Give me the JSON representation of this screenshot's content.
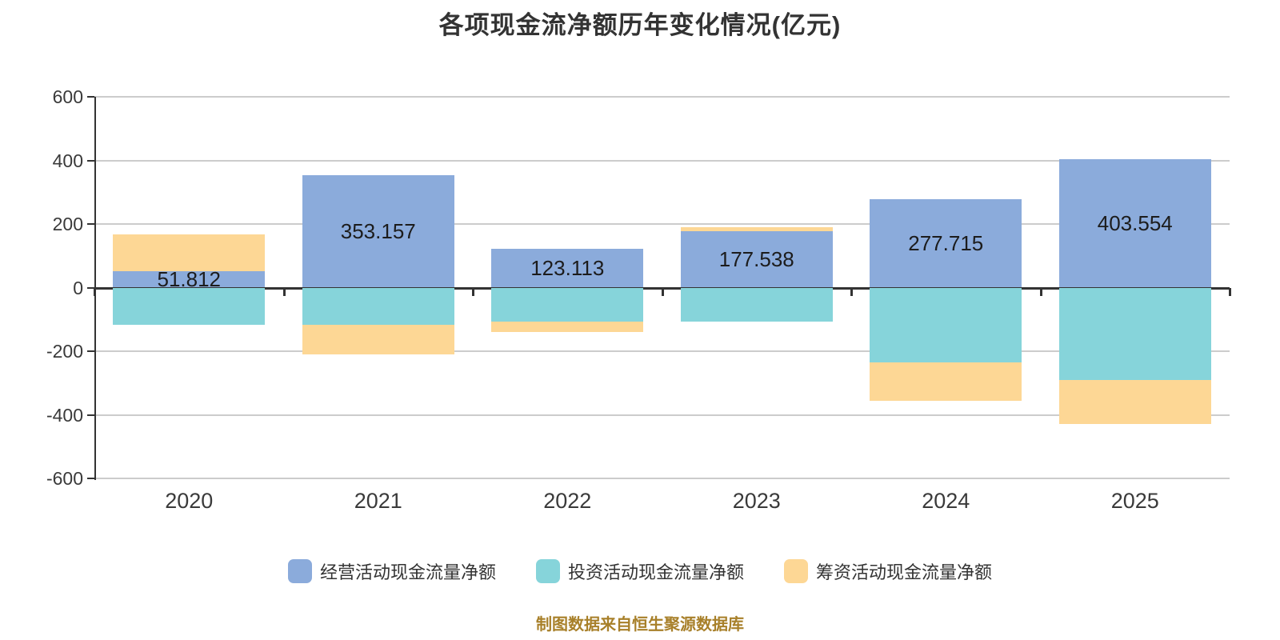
{
  "title": "各项现金流净额历年变化情况(亿元)",
  "footer": "制图数据来自恒生聚源数据库",
  "colors": {
    "background": "#ffffff",
    "title_text": "#333333",
    "axis_line": "#333333",
    "grid_line": "#cccccc",
    "axis_label": "#3a3a3a",
    "value_label": "#1c1c1c",
    "footer_text": "#a8802a"
  },
  "chart_data": {
    "type": "bar",
    "stacked": true,
    "grid": true,
    "legend_position": "bottom",
    "categories": [
      "2020",
      "2021",
      "2022",
      "2023",
      "2024",
      "2025"
    ],
    "series": [
      {
        "key": "operating",
        "name": "经营活动现金流量净额",
        "color": "#8babdb",
        "values": [
          51.812,
          353.157,
          123.113,
          177.538,
          277.715,
          403.554
        ]
      },
      {
        "key": "investing",
        "name": "投资活动现金流量净额",
        "color": "#86d4da",
        "values": [
          -117,
          -116,
          -107,
          -108,
          -235,
          -291
        ]
      },
      {
        "key": "financing",
        "name": "筹资活动现金流量净额",
        "color": "#fdd795",
        "values": [
          115.4,
          -94.4,
          -32.7,
          12.5,
          -120.7,
          -137.1
        ]
      }
    ],
    "value_labels": [
      "51.812",
      "353.157",
      "123.113",
      "177.538",
      "277.715",
      "403.554"
    ],
    "ylim": [
      -600,
      600
    ],
    "yticks": [
      600,
      400,
      200,
      0,
      -200,
      -400,
      -600
    ]
  }
}
